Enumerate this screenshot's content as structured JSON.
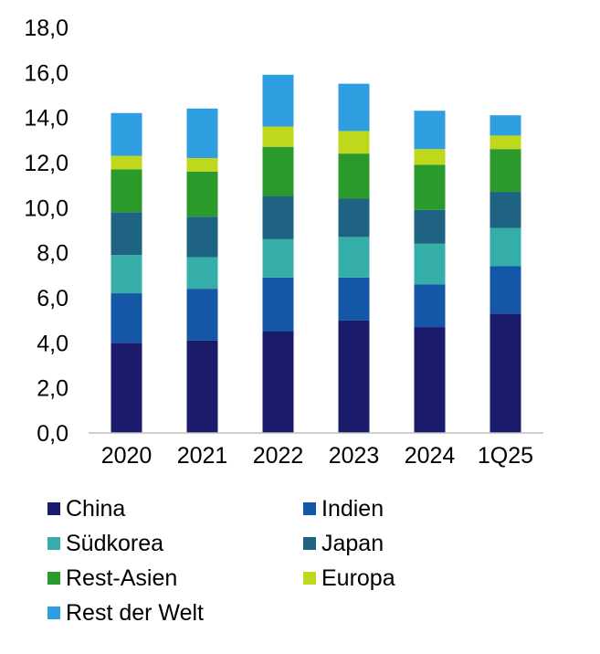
{
  "chart_data": {
    "type": "bar",
    "stacked": true,
    "categories": [
      "2020",
      "2021",
      "2022",
      "2023",
      "2024",
      "1Q25"
    ],
    "y_ticks": [
      "0,0",
      "2,0",
      "4,0",
      "6,0",
      "8,0",
      "10,0",
      "12,0",
      "14,0",
      "16,0",
      "18,0"
    ],
    "ylim": [
      0,
      18
    ],
    "grid": false,
    "legend_position": "bottom",
    "series": [
      {
        "name": "China",
        "color": "#1b1b6b",
        "values": [
          4.0,
          4.1,
          4.5,
          5.0,
          4.7,
          5.3
        ]
      },
      {
        "name": "Indien",
        "color": "#1457a6",
        "values": [
          2.2,
          2.3,
          2.4,
          1.9,
          1.9,
          2.1
        ]
      },
      {
        "name": "Südkorea",
        "color": "#35ada8",
        "values": [
          1.7,
          1.4,
          1.7,
          1.8,
          1.8,
          1.7
        ]
      },
      {
        "name": "Japan",
        "color": "#1e6381",
        "values": [
          1.9,
          1.8,
          1.9,
          1.7,
          1.5,
          1.6
        ]
      },
      {
        "name": "Rest-Asien",
        "color": "#2a9a2a",
        "values": [
          1.9,
          2.0,
          2.2,
          2.0,
          2.0,
          1.9
        ]
      },
      {
        "name": "Europa",
        "color": "#bfd81c",
        "values": [
          0.6,
          0.6,
          0.9,
          1.0,
          0.7,
          0.6
        ]
      },
      {
        "name": "Rest der Welt",
        "color": "#2f9ee0",
        "values": [
          1.9,
          2.2,
          2.3,
          2.1,
          1.7,
          0.9
        ]
      }
    ]
  }
}
